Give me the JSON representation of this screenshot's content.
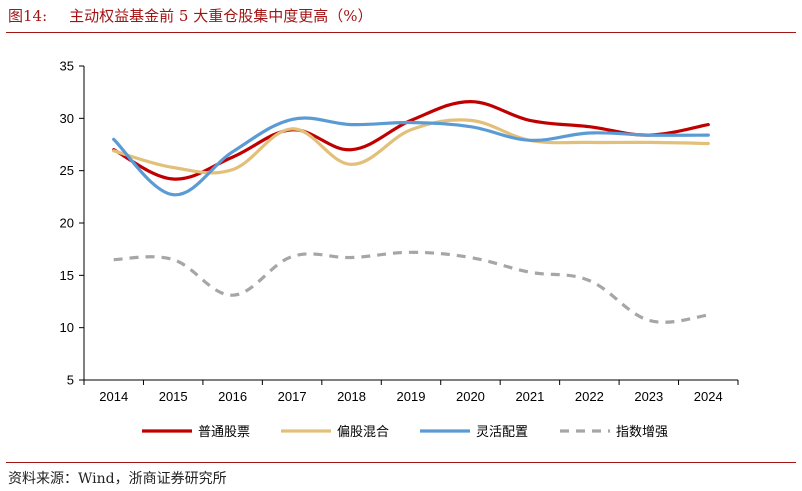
{
  "header": {
    "figure_number": "图14:",
    "title": "主动权益基金前 5 大重仓股集中度更高（%）"
  },
  "footer": {
    "source": "资料来源：Wind，浙商证券研究所"
  },
  "colors": {
    "accent": "#a31515",
    "series": [
      "#c00000",
      "#e3c07a",
      "#5b9bd5",
      "#a6a6a6"
    ]
  },
  "chart_data": {
    "type": "line",
    "title": "",
    "xlabel": "",
    "ylabel": "",
    "x": [
      "2014",
      "2015",
      "2016",
      "2017",
      "2018",
      "2019",
      "2020",
      "2021",
      "2022",
      "2023",
      "2024"
    ],
    "ylim": [
      5,
      35
    ],
    "yticks": [
      "5",
      "10",
      "15",
      "20",
      "25",
      "30",
      "35"
    ],
    "grid": false,
    "legend": "bottom",
    "series": [
      {
        "name": "普通股票",
        "values": [
          27.0,
          24.2,
          26.3,
          28.9,
          27.0,
          29.8,
          31.6,
          29.8,
          29.2,
          28.4,
          29.4
        ],
        "color": "#c00000",
        "dash": "solid"
      },
      {
        "name": "偏股混合",
        "values": [
          26.9,
          25.3,
          25.1,
          29.0,
          25.6,
          28.9,
          29.8,
          27.9,
          27.7,
          27.7,
          27.6
        ],
        "color": "#e3c07a",
        "dash": "solid"
      },
      {
        "name": "灵活配置",
        "values": [
          28.0,
          22.7,
          26.8,
          29.9,
          29.4,
          29.6,
          29.2,
          27.9,
          28.6,
          28.4,
          28.4
        ],
        "color": "#5b9bd5",
        "dash": "solid"
      },
      {
        "name": "指数增强",
        "values": [
          16.5,
          16.5,
          13.1,
          16.8,
          16.7,
          17.2,
          16.7,
          15.3,
          14.5,
          10.7,
          11.2
        ],
        "color": "#a6a6a6",
        "dash": "dashed"
      }
    ]
  }
}
